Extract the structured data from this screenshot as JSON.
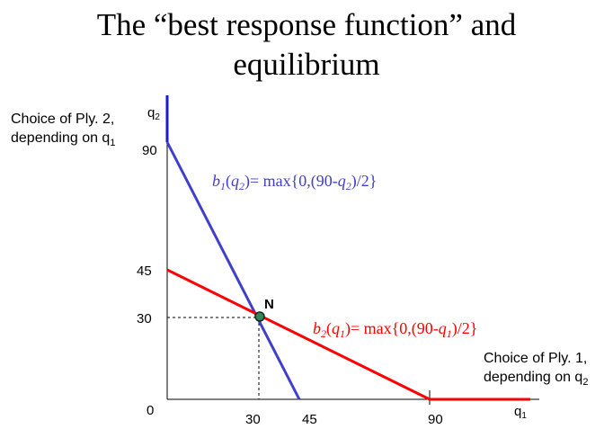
{
  "title_line1": "The “best response function” and",
  "title_line2": "equilibrium",
  "y_note_line1": "Choice of Ply. 2,",
  "y_note_line2": "depending on q",
  "y_note_sub": "1",
  "x_note_line1": "Choice of Ply. 1,",
  "x_note_line2": "depending on q",
  "x_note_sub": "2",
  "axis": {
    "y_var": "q",
    "y_var_sub": "2",
    "x_var": "q",
    "x_var_sub": "1",
    "origin": "0"
  },
  "ticks": {
    "y": [
      "90",
      "45",
      "30"
    ],
    "x": [
      "30",
      "45",
      "90"
    ]
  },
  "equilibrium": {
    "label": "N",
    "q1": 30,
    "q2": 30
  },
  "b1": {
    "color": "#3333cc",
    "lhs": "b",
    "lhs_sub": "1",
    "arg": "q",
    "arg_sub": "2",
    "rhs_start": "= max{0,(90-",
    "rhs_var": "q",
    "rhs_var_sub": "2",
    "rhs_end": ")/2}"
  },
  "b2": {
    "color": "#ff0000",
    "lhs": "b",
    "lhs_sub": "2",
    "arg": "q",
    "arg_sub": "1",
    "rhs_start": "= max{0,(90-",
    "rhs_var": "q",
    "rhs_var_sub": "1",
    "rhs_end": ")/2}"
  }
}
